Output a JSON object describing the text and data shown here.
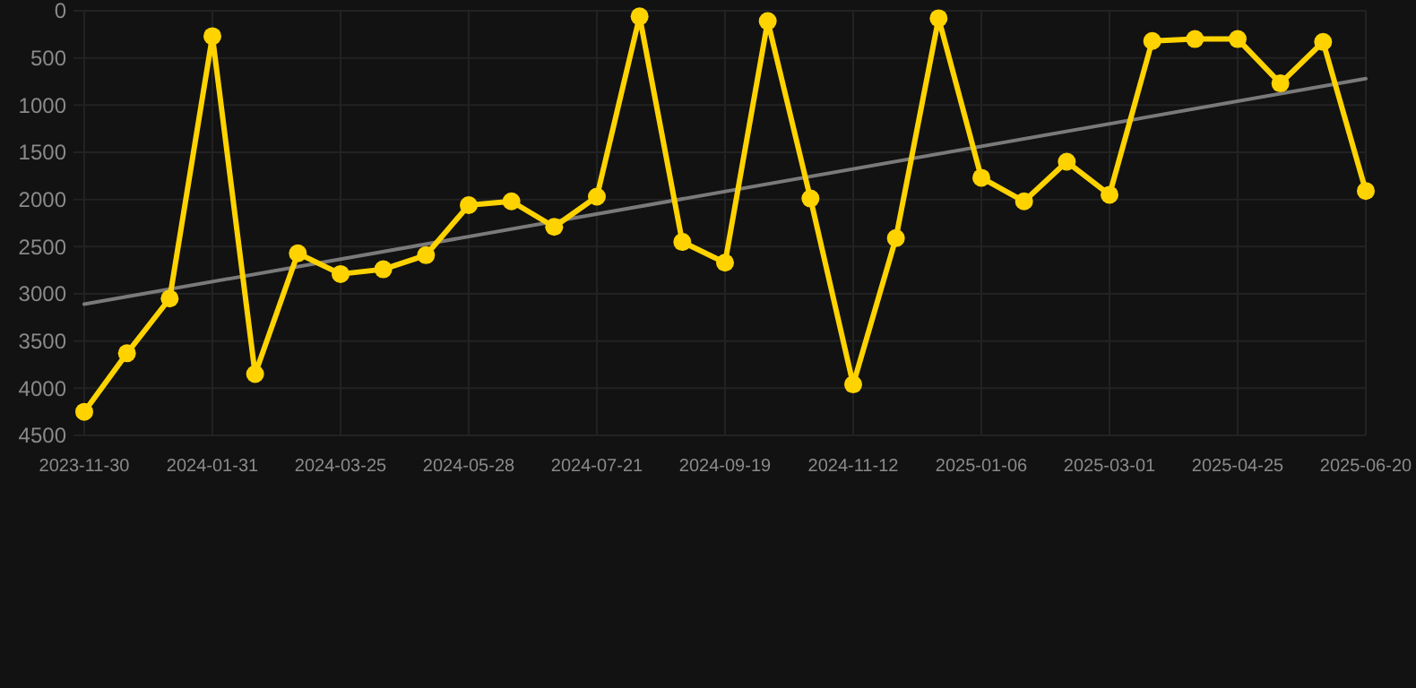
{
  "chart_data": {
    "type": "line",
    "categories": [
      "2023-11-30",
      null,
      null,
      "2024-01-31",
      null,
      null,
      "2024-03-25",
      null,
      null,
      "2024-05-28",
      null,
      null,
      "2024-07-21",
      null,
      null,
      "2024-09-19",
      null,
      null,
      "2024-11-12",
      null,
      null,
      "2025-01-06",
      null,
      null,
      "2025-03-01",
      null,
      null,
      "2025-04-25",
      null,
      null,
      "2025-06-20"
    ],
    "series": [
      {
        "color": "#ffd300",
        "marker": "circle",
        "values": [
          4250,
          3630,
          3050,
          270,
          3850,
          2570,
          2790,
          2740,
          2590,
          2060,
          2020,
          2290,
          1970,
          60,
          2450,
          2670,
          110,
          1990,
          3960,
          2410,
          80,
          1770,
          2020,
          1600,
          1950,
          320,
          300,
          300,
          770,
          330,
          1910
        ]
      },
      {
        "color": "#7a7a7a",
        "marker": "none",
        "values": [
          3110,
          null,
          null,
          null,
          null,
          null,
          null,
          null,
          null,
          null,
          null,
          null,
          null,
          null,
          null,
          null,
          null,
          null,
          null,
          null,
          null,
          null,
          null,
          null,
          null,
          null,
          null,
          null,
          null,
          null,
          720
        ]
      }
    ],
    "ylim": [
      4500,
      0
    ],
    "yticks": [
      0,
      500,
      1000,
      1500,
      2000,
      2500,
      3000,
      3500,
      4000,
      4500
    ],
    "grid": true
  }
}
